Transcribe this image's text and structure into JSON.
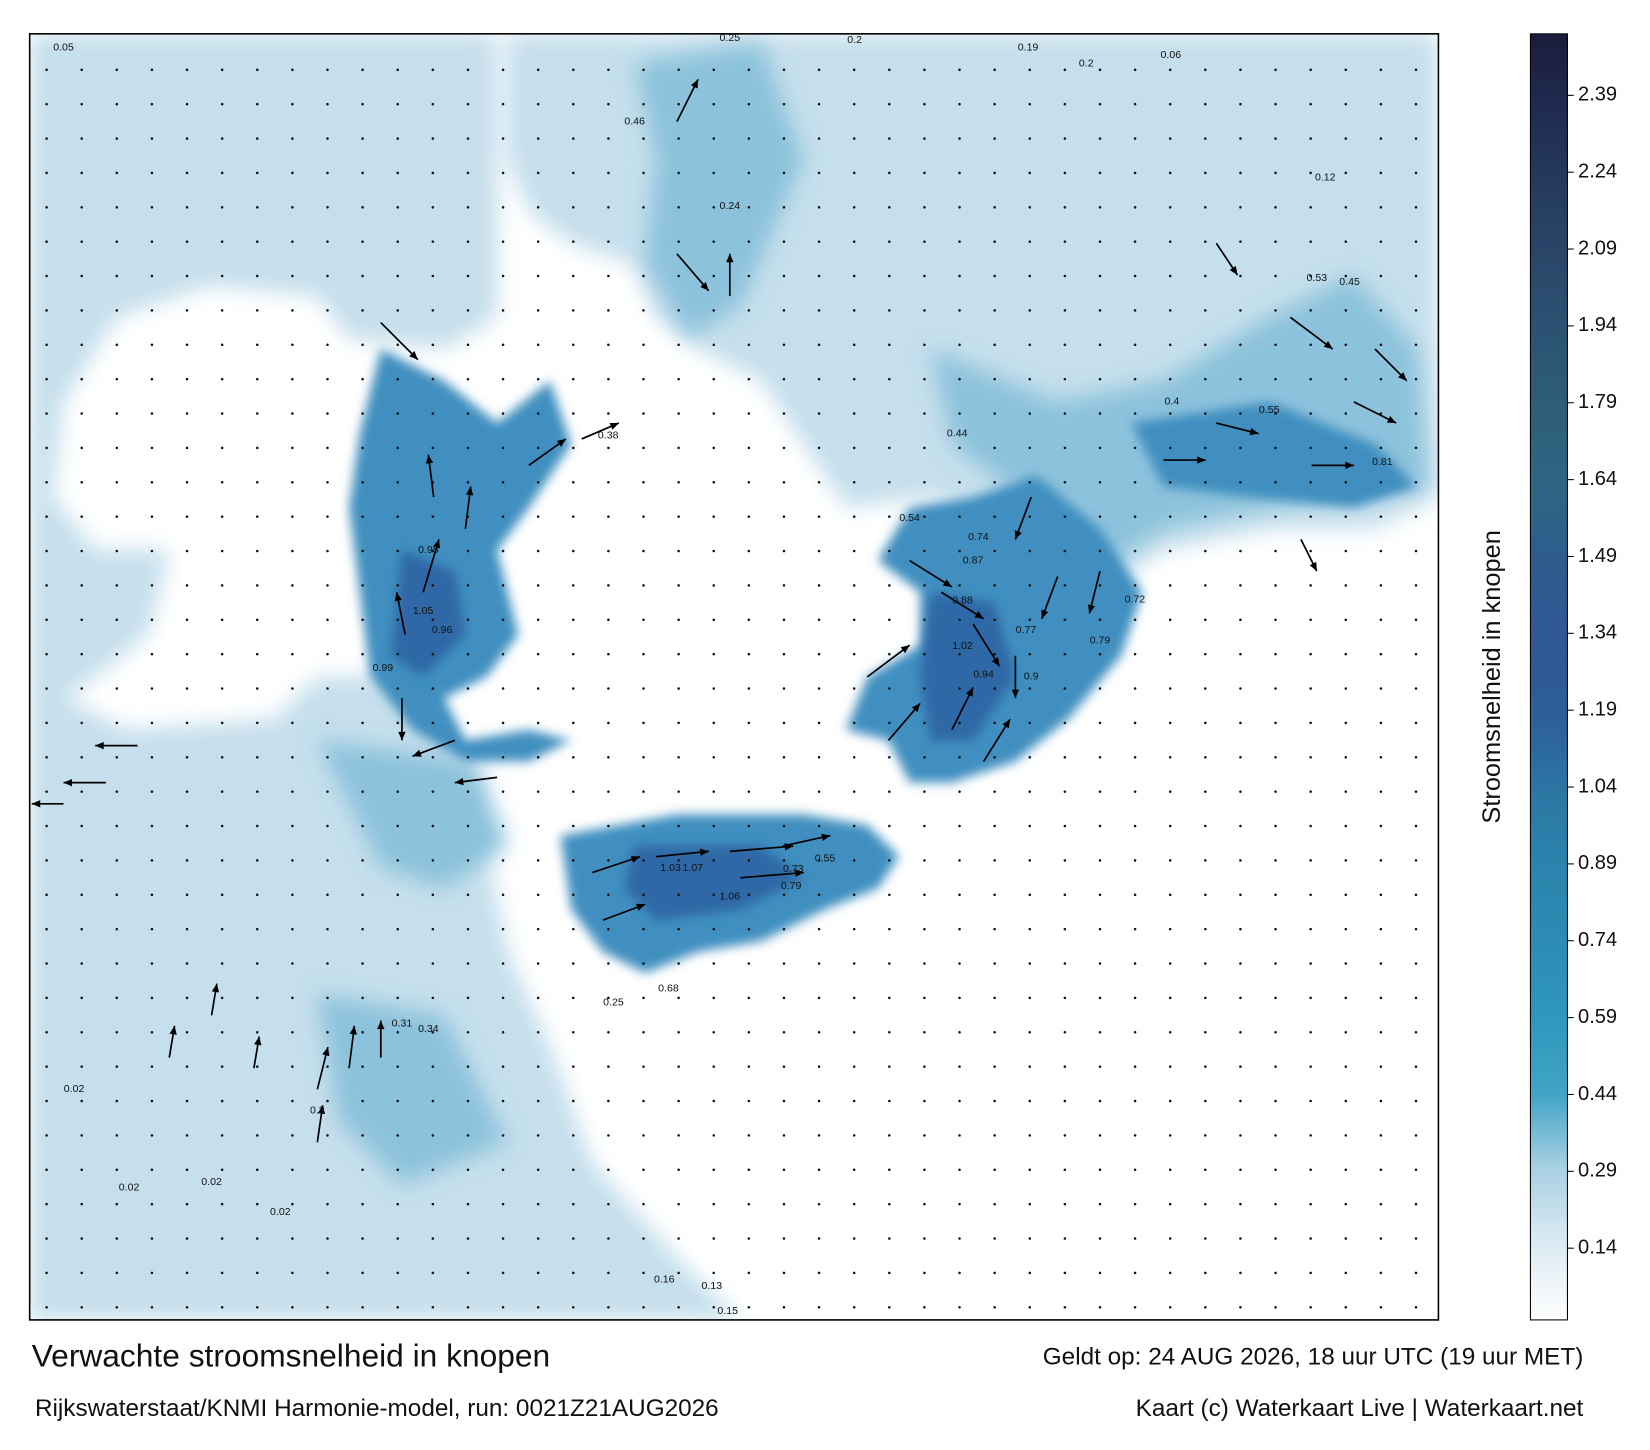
{
  "map": {
    "labels": [
      1.05,
      0.96,
      0.99,
      1.02,
      0.88,
      0.94,
      1.03,
      1.07,
      1.06,
      0.73,
      0.79,
      0.55,
      0.4,
      0.55,
      0.81,
      0.53,
      0.45,
      0.54,
      0.74,
      0.95,
      0.72,
      0.79,
      0.77,
      0.46,
      0.25,
      0.2,
      0.19,
      0.2,
      0.06,
      0.16,
      0.13,
      0.15,
      0.05,
      0.02,
      0.02,
      0.02,
      0.02,
      0.25,
      0.68,
      0.3,
      0.34,
      0.31,
      0.87,
      0.44,
      0.38,
      0.12,
      0.24,
      0.9
    ]
  },
  "colorbar": {
    "label": "Stroomsnelheid in knopen",
    "ylim": [
      0,
      2.51
    ],
    "yticks": [
      0.14,
      0.29,
      0.44,
      0.59,
      0.74,
      0.89,
      1.04,
      1.19,
      1.34,
      1.49,
      1.64,
      1.79,
      1.94,
      2.09,
      2.24,
      2.39
    ],
    "colors": [
      "#ffffff",
      "#dcebf3",
      "#a9d0e3",
      "#3fa4c6",
      "#2e97bc",
      "#2c8cb3",
      "#2b84ad",
      "#2c76a4",
      "#2d5e99",
      "#2f5795",
      "#2e5c8d",
      "#2f6584",
      "#2e5f78",
      "#2c5373",
      "#2a476a",
      "#253a5f",
      "#202b50",
      "#1b1c3d"
    ]
  },
  "footer": {
    "title": "Verwachte stroomsnelheid in knopen",
    "valid": "Geldt op: 24 AUG 2026, 18 uur UTC (19 uur MET)",
    "source": "Rijkswaterstaat/KNMI Harmonie-model, run: 0021Z21AUG2026",
    "credit": "Kaart (c) Waterkaart Live | Waterkaart.net"
  }
}
